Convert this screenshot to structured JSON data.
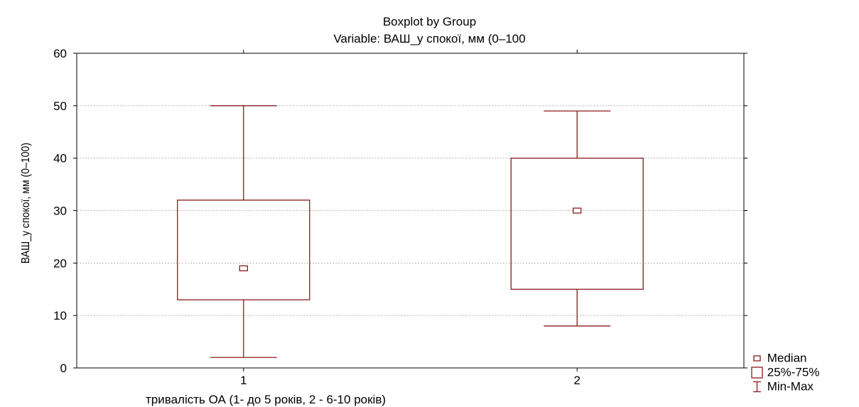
{
  "chart_data": {
    "type": "boxplot",
    "title": "Boxplot by Group",
    "subtitle": "Variable: ВАШ_у спокої, мм (0–100",
    "xlabel": "тривалість ОА (1- до 5 років, 2 - 6-10 років)",
    "ylabel": "ВАШ_у спокої, мм (0–100)",
    "ylim": [
      0,
      60
    ],
    "yticks": [
      0,
      10,
      20,
      30,
      40,
      50,
      60
    ],
    "grid": true,
    "categories": [
      "1",
      "2"
    ],
    "boxes": [
      {
        "group": "1",
        "min": 2,
        "q1": 13,
        "median": 19,
        "q3": 32,
        "max": 50
      },
      {
        "group": "2",
        "min": 8,
        "q1": 15,
        "median": 30,
        "q3": 40,
        "max": 49
      }
    ],
    "legend": {
      "placement": "bottom-right",
      "items": [
        "Median",
        "25%-75%",
        "Min-Max"
      ]
    },
    "colors": {
      "box": "#8b1a1a",
      "grid": "#b8b8b8",
      "axis": "#000000"
    }
  }
}
